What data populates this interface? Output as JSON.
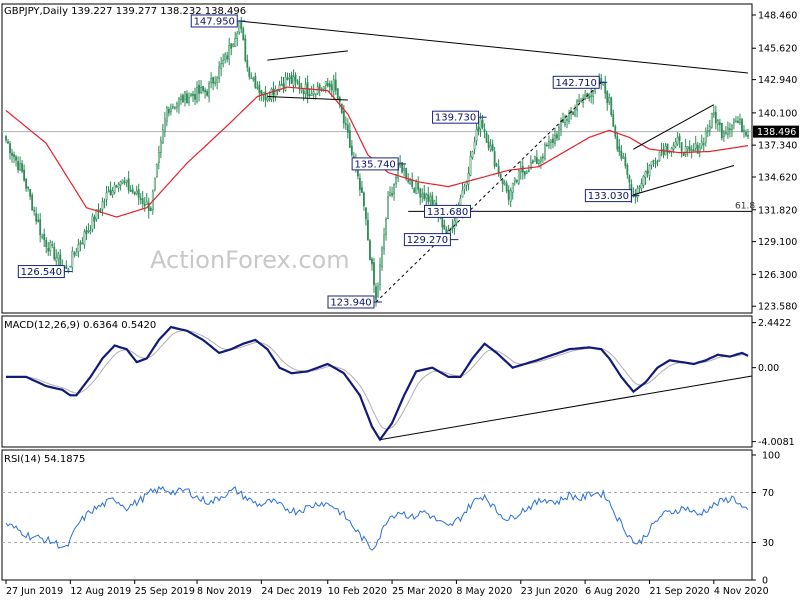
{
  "header": {
    "symbol_line": "GBPJPY,Daily 139.227 139.277 138.232 138.496"
  },
  "watermark": "ActionForex.com",
  "colors": {
    "candle": "#2e8b57",
    "sma": "#e8202a",
    "macd": "#0f1a7a",
    "signal": "#b0b0b0",
    "rsi": "#2a6fdb",
    "label_border": "#1a237e",
    "trend": "#000000",
    "price_box": "#000000"
  },
  "price_panel": {
    "ymin": 123.0,
    "ymax": 149.4,
    "ticks": [
      "148.460",
      "145.620",
      "142.940",
      "140.100",
      "137.340",
      "134.620",
      "131.820",
      "129.100",
      "126.300",
      "123.580"
    ],
    "tick_values": [
      148.46,
      145.62,
      142.94,
      140.1,
      137.34,
      134.62,
      131.82,
      129.1,
      126.3,
      123.58
    ],
    "current_price": "138.496",
    "current_value": 138.496,
    "fib_label": "61.8",
    "fib_value": 131.68
  },
  "macd_panel": {
    "title": "MACD(12,26,9) 0.6364 0.5420",
    "ymin": -4.3,
    "ymax": 2.8,
    "ticks": [
      "2.4422",
      "0.00",
      "-4.0081"
    ],
    "tick_values": [
      2.4422,
      0.0,
      -4.0081
    ]
  },
  "rsi_panel": {
    "title": "RSI(14) 54.1875",
    "ymin": 0,
    "ymax": 104,
    "ticks": [
      "100",
      "70",
      "30",
      "0"
    ],
    "tick_values": [
      100,
      70,
      30,
      0
    ],
    "levels": [
      70,
      30
    ]
  },
  "x_axis": {
    "labels": [
      "27 Jun 2019",
      "12 Aug 2019",
      "25 Sep 2019",
      "8 Nov 2019",
      "24 Dec 2019",
      "10 Feb 2020",
      "25 Mar 2020",
      "8 May 2020",
      "23 Jun 2020",
      "6 Aug 2020",
      "21 Sep 2020",
      "4 Nov 2020"
    ],
    "label_bars": [
      0,
      32,
      64,
      95,
      127,
      160,
      192,
      224,
      256,
      288,
      320,
      352
    ]
  },
  "chart_data": {
    "type": "candlestick",
    "title": "GBPJPY,Daily",
    "bars": 370,
    "price_keypoints": [
      [
        0,
        137.8
      ],
      [
        8,
        135.0
      ],
      [
        18,
        129.5
      ],
      [
        30,
        126.6
      ],
      [
        35,
        128.5
      ],
      [
        42,
        130.5
      ],
      [
        50,
        133.0
      ],
      [
        56,
        134.5
      ],
      [
        62,
        133.5
      ],
      [
        72,
        132.0
      ],
      [
        80,
        140.5
      ],
      [
        90,
        141.5
      ],
      [
        100,
        142.0
      ],
      [
        110,
        145.0
      ],
      [
        116,
        147.9
      ],
      [
        120,
        144.0
      ],
      [
        128,
        141.5
      ],
      [
        140,
        143.0
      ],
      [
        150,
        142.0
      ],
      [
        163,
        142.5
      ],
      [
        170,
        138.0
      ],
      [
        178,
        132.0
      ],
      [
        184,
        124.0
      ],
      [
        190,
        132.5
      ],
      [
        196,
        135.7
      ],
      [
        202,
        134.0
      ],
      [
        212,
        132.5
      ],
      [
        220,
        129.6
      ],
      [
        228,
        134.0
      ],
      [
        236,
        139.7
      ],
      [
        242,
        136.5
      ],
      [
        250,
        133.0
      ],
      [
        256,
        135.0
      ],
      [
        264,
        136.0
      ],
      [
        272,
        137.8
      ],
      [
        280,
        140.0
      ],
      [
        288,
        141.5
      ],
      [
        296,
        142.7
      ],
      [
        300,
        141.0
      ],
      [
        304,
        137.5
      ],
      [
        312,
        133.0
      ],
      [
        318,
        135.0
      ],
      [
        326,
        137.0
      ],
      [
        334,
        137.5
      ],
      [
        340,
        136.5
      ],
      [
        346,
        137.5
      ],
      [
        352,
        140.0
      ],
      [
        356,
        138.5
      ],
      [
        362,
        139.5
      ],
      [
        369,
        138.5
      ]
    ],
    "sma_keypoints": [
      [
        0,
        140.3
      ],
      [
        20,
        137.5
      ],
      [
        40,
        132.0
      ],
      [
        55,
        131.2
      ],
      [
        70,
        132.0
      ],
      [
        90,
        135.8
      ],
      [
        110,
        139.0
      ],
      [
        125,
        141.5
      ],
      [
        140,
        142.3
      ],
      [
        160,
        142.0
      ],
      [
        170,
        140.0
      ],
      [
        180,
        136.5
      ],
      [
        190,
        135.0
      ],
      [
        205,
        134.2
      ],
      [
        220,
        133.8
      ],
      [
        235,
        134.5
      ],
      [
        250,
        135.2
      ],
      [
        265,
        135.5
      ],
      [
        280,
        137.0
      ],
      [
        290,
        138.0
      ],
      [
        300,
        138.6
      ],
      [
        310,
        138.0
      ],
      [
        320,
        137.0
      ],
      [
        335,
        136.7
      ],
      [
        350,
        136.8
      ],
      [
        369,
        137.3
      ]
    ],
    "macd_keypoints": [
      [
        0,
        -0.5
      ],
      [
        10,
        -0.5
      ],
      [
        20,
        -1.0
      ],
      [
        28,
        -1.2
      ],
      [
        32,
        -1.5
      ],
      [
        35,
        -1.5
      ],
      [
        42,
        -0.5
      ],
      [
        48,
        0.5
      ],
      [
        54,
        1.2
      ],
      [
        60,
        1.0
      ],
      [
        65,
        0.3
      ],
      [
        70,
        0.5
      ],
      [
        76,
        1.5
      ],
      [
        82,
        2.2
      ],
      [
        90,
        2.0
      ],
      [
        98,
        1.5
      ],
      [
        106,
        0.8
      ],
      [
        112,
        1.0
      ],
      [
        118,
        1.3
      ],
      [
        124,
        1.5
      ],
      [
        130,
        1.0
      ],
      [
        136,
        0.0
      ],
      [
        142,
        -0.3
      ],
      [
        150,
        -0.2
      ],
      [
        160,
        0.2
      ],
      [
        168,
        -0.3
      ],
      [
        176,
        -1.5
      ],
      [
        182,
        -3.2
      ],
      [
        186,
        -3.9
      ],
      [
        192,
        -3.0
      ],
      [
        198,
        -1.5
      ],
      [
        204,
        -0.2
      ],
      [
        212,
        0.0
      ],
      [
        220,
        -0.5
      ],
      [
        226,
        -0.5
      ],
      [
        232,
        0.5
      ],
      [
        238,
        1.3
      ],
      [
        244,
        0.8
      ],
      [
        252,
        0.0
      ],
      [
        258,
        0.2
      ],
      [
        264,
        0.4
      ],
      [
        272,
        0.7
      ],
      [
        280,
        1.0
      ],
      [
        290,
        1.1
      ],
      [
        296,
        1.0
      ],
      [
        300,
        0.5
      ],
      [
        306,
        -0.5
      ],
      [
        312,
        -1.3
      ],
      [
        318,
        -0.8
      ],
      [
        324,
        0.0
      ],
      [
        330,
        0.4
      ],
      [
        336,
        0.3
      ],
      [
        342,
        0.2
      ],
      [
        348,
        0.4
      ],
      [
        354,
        0.7
      ],
      [
        360,
        0.6
      ],
      [
        366,
        0.8
      ],
      [
        369,
        0.64
      ]
    ],
    "rsi_keypoints": [
      [
        0,
        45
      ],
      [
        6,
        40
      ],
      [
        12,
        35
      ],
      [
        18,
        33
      ],
      [
        24,
        30
      ],
      [
        30,
        25
      ],
      [
        36,
        45
      ],
      [
        42,
        55
      ],
      [
        48,
        60
      ],
      [
        54,
        65
      ],
      [
        60,
        58
      ],
      [
        66,
        63
      ],
      [
        72,
        70
      ],
      [
        78,
        73
      ],
      [
        84,
        70
      ],
      [
        90,
        72
      ],
      [
        96,
        65
      ],
      [
        102,
        62
      ],
      [
        108,
        68
      ],
      [
        114,
        72
      ],
      [
        120,
        65
      ],
      [
        126,
        60
      ],
      [
        132,
        63
      ],
      [
        138,
        58
      ],
      [
        144,
        55
      ],
      [
        150,
        58
      ],
      [
        156,
        62
      ],
      [
        162,
        60
      ],
      [
        168,
        52
      ],
      [
        174,
        40
      ],
      [
        178,
        32
      ],
      [
        182,
        25
      ],
      [
        186,
        35
      ],
      [
        190,
        50
      ],
      [
        196,
        55
      ],
      [
        202,
        50
      ],
      [
        208,
        55
      ],
      [
        214,
        48
      ],
      [
        220,
        42
      ],
      [
        226,
        50
      ],
      [
        232,
        62
      ],
      [
        238,
        68
      ],
      [
        244,
        55
      ],
      [
        250,
        48
      ],
      [
        256,
        55
      ],
      [
        262,
        60
      ],
      [
        268,
        65
      ],
      [
        274,
        62
      ],
      [
        280,
        68
      ],
      [
        286,
        65
      ],
      [
        292,
        70
      ],
      [
        298,
        68
      ],
      [
        304,
        50
      ],
      [
        310,
        35
      ],
      [
        314,
        28
      ],
      [
        320,
        40
      ],
      [
        326,
        52
      ],
      [
        332,
        55
      ],
      [
        338,
        58
      ],
      [
        344,
        52
      ],
      [
        350,
        58
      ],
      [
        356,
        63
      ],
      [
        362,
        66
      ],
      [
        366,
        58
      ],
      [
        369,
        54
      ]
    ],
    "annotations": [
      {
        "label": "147.950",
        "bar": 116,
        "price": 147.95,
        "side": "left"
      },
      {
        "label": "142.710",
        "bar": 296,
        "price": 142.71,
        "side": "left"
      },
      {
        "label": "139.730",
        "bar": 236,
        "price": 139.73,
        "side": "left"
      },
      {
        "label": "135.740",
        "bar": 196,
        "price": 135.74,
        "side": "left"
      },
      {
        "label": "133.030",
        "bar": 312,
        "price": 133.03,
        "side": "left"
      },
      {
        "label": "131.680",
        "bar": 232,
        "price": 131.68,
        "side": "left"
      },
      {
        "label": "129.270",
        "bar": 222,
        "price": 129.27,
        "side": "left"
      },
      {
        "label": "126.540",
        "bar": 30,
        "price": 126.54,
        "side": "left"
      },
      {
        "label": "123.940",
        "bar": 184,
        "price": 123.94,
        "side": "left"
      }
    ],
    "price_trendlines": [
      {
        "bar1": 116,
        "price1": 147.95,
        "bar2": 369,
        "price2": 143.5,
        "style": "solid"
      },
      {
        "bar1": 184,
        "price1": 123.94,
        "bar2": 296,
        "price2": 142.71,
        "style": "dashed"
      },
      {
        "bar1": 130,
        "price1": 144.6,
        "bar2": 170,
        "price2": 145.4,
        "style": "solid"
      },
      {
        "bar1": 130,
        "price1": 141.5,
        "bar2": 170,
        "price2": 141.2,
        "style": "solid"
      },
      {
        "bar1": 312,
        "price1": 137.0,
        "bar2": 352,
        "price2": 140.8,
        "style": "solid"
      },
      {
        "bar1": 312,
        "price1": 133.1,
        "bar2": 362,
        "price2": 135.6,
        "style": "solid"
      }
    ],
    "macd_trendlines": [
      {
        "bar1": 186,
        "value1": -3.9,
        "bar2": 369,
        "value2": -0.45,
        "style": "solid"
      }
    ]
  }
}
